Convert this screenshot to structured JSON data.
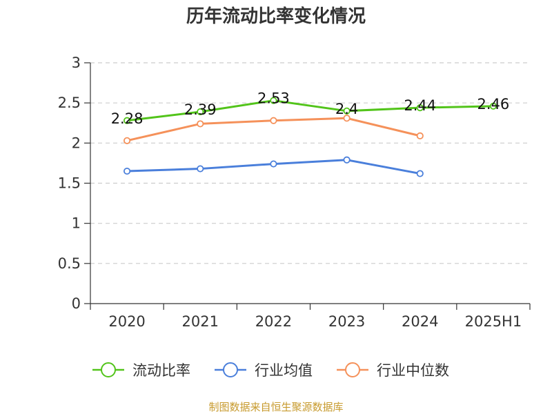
{
  "chart_data": {
    "type": "line",
    "title": "历年流动比率变化情况",
    "categories": [
      "2020",
      "2021",
      "2022",
      "2023",
      "2024",
      "2025H1"
    ],
    "ylim": [
      0,
      3
    ],
    "yticks": [
      "0",
      "0.5",
      "1",
      "1.5",
      "2",
      "2.5",
      "3"
    ],
    "grid": true,
    "legend_position": "bottom",
    "series": [
      {
        "name": "流动比率",
        "color": "#52c41a",
        "values": [
          2.28,
          2.39,
          2.53,
          2.4,
          2.44,
          2.46
        ],
        "data_labels": [
          "2.28",
          "2.39",
          "2.53",
          "2.4",
          "2.44",
          "2.46"
        ]
      },
      {
        "name": "行业均值",
        "color": "#4a7fdb",
        "values": [
          1.65,
          1.68,
          1.74,
          1.79,
          1.62,
          null
        ]
      },
      {
        "name": "行业中位数",
        "color": "#f5915a",
        "values": [
          2.03,
          2.24,
          2.28,
          2.31,
          2.09,
          null
        ]
      }
    ]
  },
  "source_note": "制图数据来自恒生聚源数据库"
}
